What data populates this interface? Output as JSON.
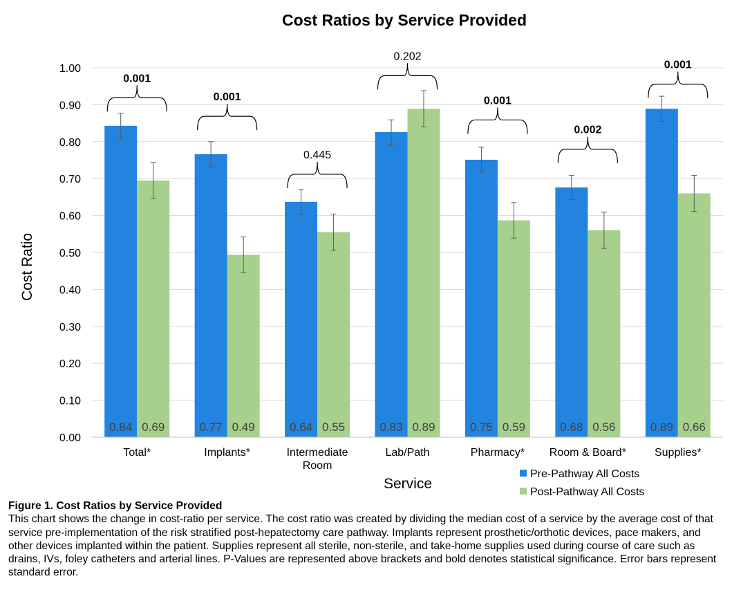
{
  "chart_data": {
    "type": "bar",
    "title": "Cost Ratios by Service Provided",
    "xlabel": "Service",
    "ylabel": "Cost Ratio",
    "ylim": [
      0,
      1.0
    ],
    "yticks": [
      "0.00",
      "0.10",
      "0.20",
      "0.30",
      "0.40",
      "0.50",
      "0.60",
      "0.70",
      "0.80",
      "0.90",
      "1.00"
    ],
    "grid": true,
    "legend_position": "bottom-right",
    "categories": [
      [
        "Total*"
      ],
      [
        "Implants*"
      ],
      [
        "Intermediate",
        "Room"
      ],
      [
        "Lab/Path"
      ],
      [
        "Pharmacy*"
      ],
      [
        "Room & Board*"
      ],
      [
        "Supplies*"
      ]
    ],
    "series": [
      {
        "name": "Pre-Pathway All Costs",
        "color": "#2384df",
        "values": [
          0.843,
          0.766,
          0.637,
          0.826,
          0.751,
          0.676,
          0.889
        ],
        "labels": [
          "0.84",
          "0.77",
          "0.64",
          "0.83",
          "0.75",
          "0.68",
          "0.89"
        ],
        "error": [
          0.034,
          0.034,
          0.034,
          0.033,
          0.034,
          0.033,
          0.034
        ]
      },
      {
        "name": "Post-Pathway All Costs",
        "color": "#a7d08c",
        "values": [
          0.695,
          0.494,
          0.555,
          0.889,
          0.587,
          0.56,
          0.66
        ],
        "labels": [
          "0.69",
          "0.49",
          "0.55",
          "0.89",
          "0.59",
          "0.56",
          "0.66"
        ],
        "error": [
          0.049,
          0.048,
          0.049,
          0.049,
          0.048,
          0.049,
          0.049
        ]
      }
    ],
    "p_values": [
      {
        "text": "0.001",
        "bold": true,
        "bracket_y": 0.885
      },
      {
        "text": "0.001",
        "bold": true,
        "bracket_y": 0.835
      },
      {
        "text": "0.445",
        "bold": false,
        "bracket_y": 0.678
      },
      {
        "text": "0.202",
        "bold": false,
        "bracket_y": 0.945
      },
      {
        "text": "0.001",
        "bold": true,
        "bracket_y": 0.825
      },
      {
        "text": "0.002",
        "bold": true,
        "bracket_y": 0.746
      },
      {
        "text": "0.001",
        "bold": true,
        "bracket_y": 0.922
      }
    ]
  },
  "caption": {
    "title": "Figure 1. Cost Ratios by Service Provided",
    "body": "This chart shows the change in cost-ratio per service. The cost ratio was created by dividing the median cost of a service by the average cost of that service pre-implementation of the risk stratified post-hepatectomy care pathway. Implants represent prosthetic/orthotic devices, pace makers, and other devices implanted within the patient. Supplies represent all sterile, non-sterile, and take-home supplies used during course of care such as drains, IVs, foley catheters and arterial lines. P-Values are represented above brackets and bold denotes statistical significance. Error bars represent standard error."
  }
}
